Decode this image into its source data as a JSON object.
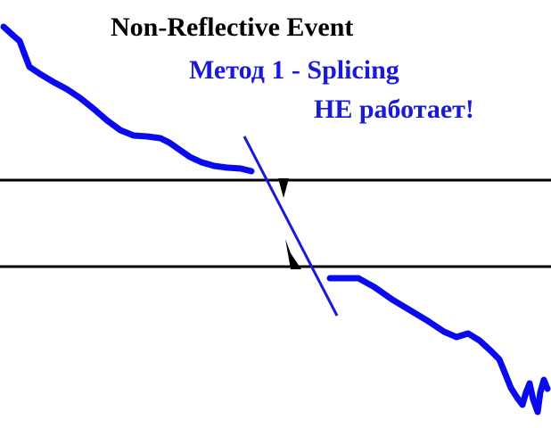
{
  "title": "Non-Reflective Event",
  "method_label": "Метод 1 - Splicing",
  "status_label": "НЕ работает!",
  "colors": {
    "title": "#000000",
    "annotation": "#1a1ad6",
    "trace": "#0a0aee",
    "splice_line": "#1a1ad6",
    "reference_lines": "#000000",
    "background": "#ffffff"
  }
}
